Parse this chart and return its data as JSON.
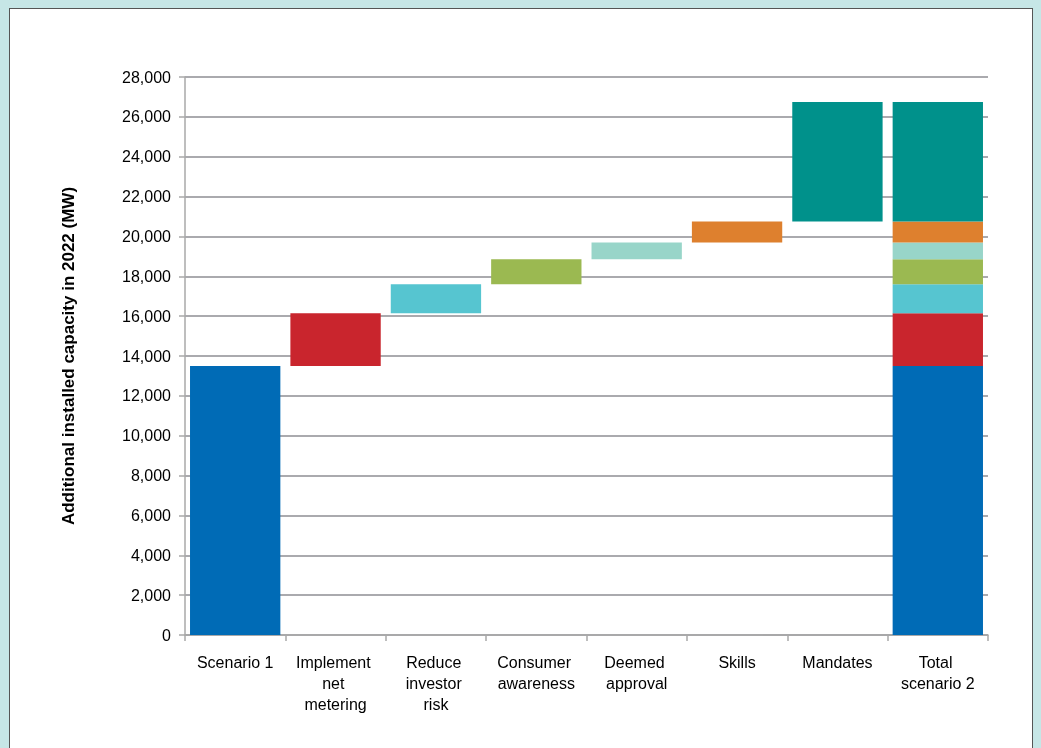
{
  "chart_data": {
    "type": "bar",
    "ylabel": "Additional installed capacity in 2022 (MW)",
    "categories": [
      "Scenario 1",
      "Implement net metering",
      "Reduce investor risk",
      "Consumer awareness",
      "Deemed approval",
      "Skills",
      "Mandates",
      "Total scenario 2"
    ],
    "stacked": true,
    "series": [
      {
        "color": "#006bb6",
        "values": [
          13500,
          null,
          null,
          null,
          null,
          null,
          null,
          13500
        ]
      },
      {
        "color": "#c9252d",
        "values": [
          null,
          2650,
          null,
          null,
          null,
          null,
          null,
          2650
        ],
        "base": [
          null,
          13500,
          null,
          null,
          null,
          null,
          null,
          null
        ]
      },
      {
        "color": "#56c5d0",
        "values": [
          null,
          null,
          1450,
          null,
          null,
          null,
          null,
          1450
        ],
        "base": [
          null,
          null,
          16150,
          null,
          null,
          null,
          null,
          null
        ]
      },
      {
        "color": "#9bb951",
        "values": [
          null,
          null,
          null,
          1250,
          null,
          null,
          null,
          1250
        ],
        "base": [
          null,
          null,
          null,
          17600,
          null,
          null,
          null,
          null
        ]
      },
      {
        "color": "#98d5c9",
        "values": [
          null,
          null,
          null,
          null,
          850,
          null,
          null,
          850
        ],
        "base": [
          null,
          null,
          null,
          null,
          18850,
          null,
          null,
          null
        ]
      },
      {
        "color": "#de802e",
        "values": [
          null,
          null,
          null,
          null,
          null,
          1050,
          null,
          1050
        ],
        "base": [
          null,
          null,
          null,
          null,
          null,
          19700,
          null,
          null
        ]
      },
      {
        "color": "#00918b",
        "values": [
          null,
          null,
          null,
          null,
          null,
          null,
          6000,
          6000
        ],
        "base": [
          null,
          null,
          null,
          null,
          null,
          null,
          20750,
          null
        ]
      }
    ],
    "ylim": [
      0,
      28000
    ],
    "yticks": [
      {
        "value": 0,
        "label": "0"
      },
      {
        "value": 2000,
        "label": "2,000"
      },
      {
        "value": 4000,
        "label": "4,000"
      },
      {
        "value": 6000,
        "label": "6,000"
      },
      {
        "value": 8000,
        "label": "8,000"
      },
      {
        "value": 10000,
        "label": "10,000"
      },
      {
        "value": 12000,
        "label": "12,000"
      },
      {
        "value": 14000,
        "label": "14,000"
      },
      {
        "value": 16000,
        "label": "16,000"
      },
      {
        "value": 18000,
        "label": "18,000"
      },
      {
        "value": 20000,
        "label": "20,000"
      },
      {
        "value": 22000,
        "label": "22,000"
      },
      {
        "value": 24000,
        "label": "24,000"
      },
      {
        "value": 26000,
        "label": "26,000"
      },
      {
        "value": 28000,
        "label": "28,000"
      }
    ],
    "grid": "y"
  }
}
